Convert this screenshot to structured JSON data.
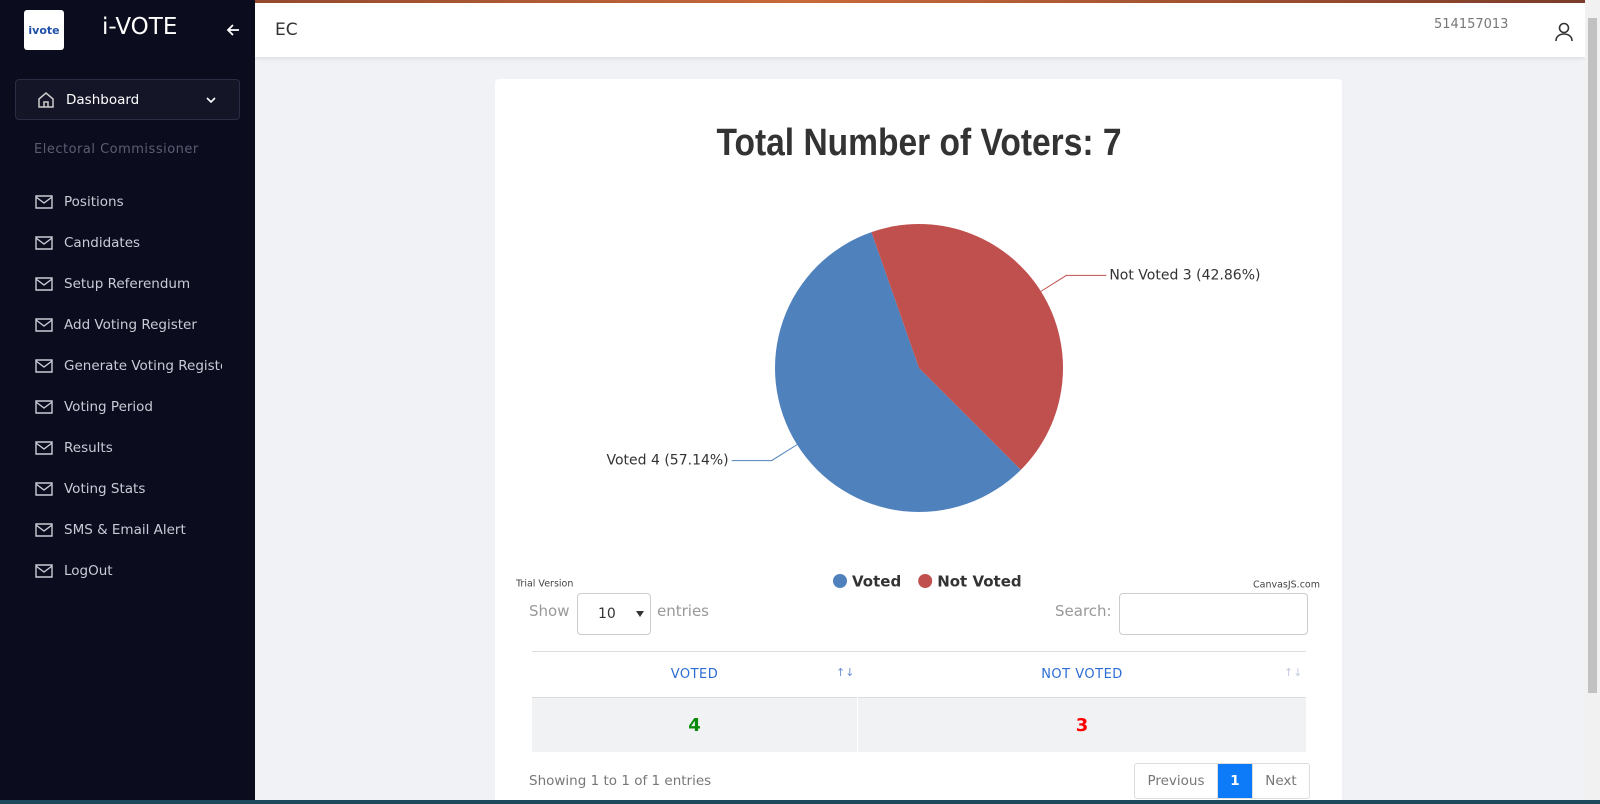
{
  "sidebar": {
    "logo": "ivote",
    "brand": "i-VOTE",
    "dashboard": "Dashboard",
    "section": "Electoral Commissioner",
    "menu": [
      "Positions",
      "Candidates",
      "Setup Referendum",
      "Add Voting Register",
      "Generate Voting Register",
      "Voting Period",
      "Results",
      "Voting Stats",
      "SMS & Email Alert",
      "LogOut"
    ]
  },
  "header": {
    "title": "EC",
    "user": "514157013"
  },
  "chart_data": {
    "type": "pie",
    "title": "Total Number of Voters:  7",
    "categories": [
      "Voted",
      "Not Voted"
    ],
    "values": [
      4,
      3
    ],
    "value_labels": [
      "Voted 4 (57.14%)",
      "Not Voted 3 (42.86%)"
    ],
    "colors": [
      "#4f81bc",
      "#c0504e"
    ],
    "legend": "bottom",
    "watermark": "Trial Version",
    "credit": "CanvasJS.com"
  },
  "table": {
    "show_label": "Show",
    "entries_value": "10",
    "entries_label": "entries",
    "search_label": "Search:",
    "columns": [
      "VOTED",
      "NOT VOTED"
    ],
    "rows": [
      [
        "4",
        "3"
      ]
    ],
    "info": "Showing 1 to 1 of 1 entries",
    "pagination": [
      "Previous",
      "1",
      "Next"
    ]
  }
}
